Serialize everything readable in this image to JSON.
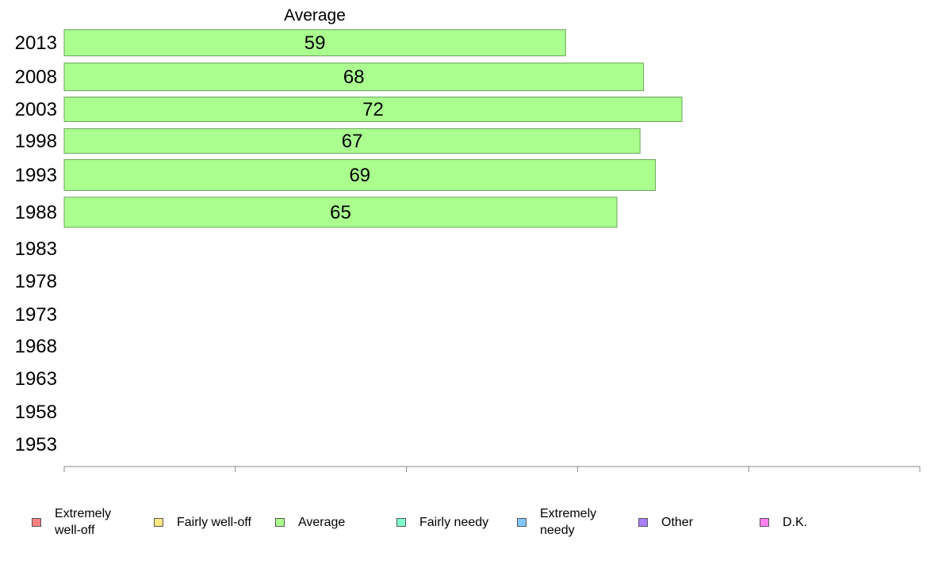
{
  "chart_data": {
    "type": "bar",
    "orientation": "horizontal",
    "title": "Average",
    "categories": [
      "2013",
      "2008",
      "2003",
      "1998",
      "1993",
      "1988",
      "1983",
      "1978",
      "1973",
      "1968",
      "1963",
      "1958",
      "1953"
    ],
    "series": [
      {
        "name": "Average",
        "values": [
          59,
          68,
          72,
          67,
          69,
          65,
          null,
          null,
          null,
          null,
          null,
          null,
          null
        ],
        "color": "#aaff8f"
      }
    ],
    "bar_lengths": [
      58.6,
      67.7,
      72.2,
      67.3,
      69.1,
      64.6,
      null,
      null,
      null,
      null,
      null,
      null,
      null
    ],
    "xlim": [
      0,
      100
    ],
    "xticks": [
      0,
      20,
      40,
      60,
      80,
      100
    ],
    "xlabel": "",
    "ylabel": "",
    "grid": false,
    "legend_position": "bottom"
  },
  "legend": [
    {
      "label": "Extremely\nwell-off",
      "color": "#ff8080"
    },
    {
      "label": "Fairly well-off",
      "color": "#ffe680"
    },
    {
      "label": "Average",
      "color": "#aaff8f"
    },
    {
      "label": "Fairly needy",
      "color": "#80ffcc"
    },
    {
      "label": "Extremely\nneedy",
      "color": "#80c8ff"
    },
    {
      "label": "Other",
      "color": "#aa80ff"
    },
    {
      "label": "D.K.",
      "color": "#ff80ee"
    }
  ],
  "colors": {
    "bar_border": "#6aa55a",
    "axis": "#888888"
  }
}
